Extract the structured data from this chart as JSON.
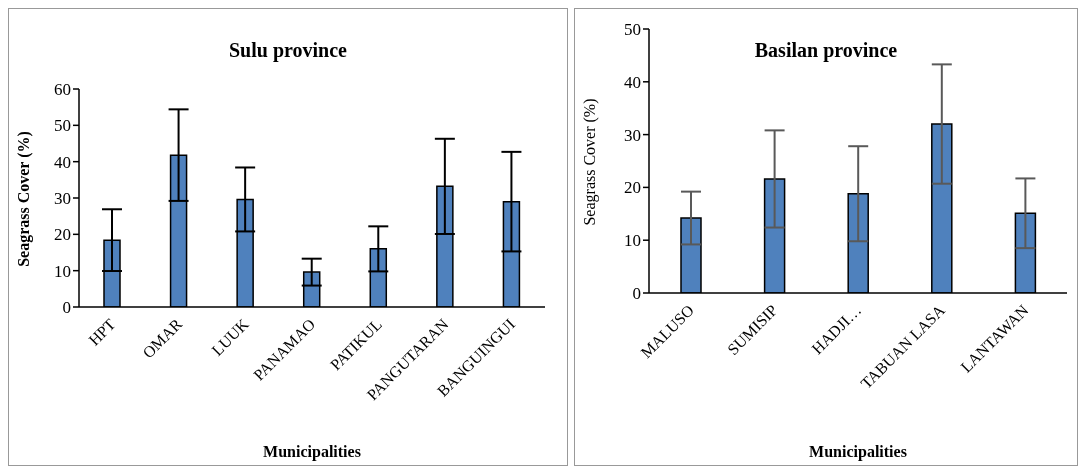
{
  "chart_data": [
    {
      "type": "bar",
      "title": "Sulu province",
      "xlabel": "Municipalities",
      "ylabel": "Seagrass Cover (%)",
      "categories": [
        "HPT",
        "OMAR",
        "LUUK",
        "PANAMAO",
        "PATIKUL",
        "PANGUTARAN",
        "BANGUINGUI"
      ],
      "values": [
        18.4,
        41.8,
        29.6,
        9.6,
        16.0,
        33.2,
        29.0
      ],
      "errors": [
        8.5,
        12.6,
        8.8,
        3.7,
        6.2,
        13.1,
        13.7
      ],
      "color": "#4f81bd",
      "ylim": [
        0,
        60
      ],
      "yticks": [
        0,
        10,
        20,
        30,
        40,
        50,
        60
      ],
      "grid": false
    },
    {
      "type": "bar",
      "title": "Basilan province",
      "xlabel": "Municipalities",
      "ylabel": "Seagrass Cover (%)",
      "categories": [
        "MALUSO",
        "SUMISIP",
        "HADJI…",
        "TABUAN LASA",
        "LANTAWAN"
      ],
      "values": [
        14.2,
        21.6,
        18.8,
        32.0,
        15.1
      ],
      "errors": [
        5.0,
        9.2,
        9.0,
        11.3,
        6.6
      ],
      "color": "#4f81bd",
      "ylim": [
        0,
        50
      ],
      "yticks": [
        0,
        10,
        20,
        30,
        40,
        50
      ],
      "grid": false
    }
  ]
}
